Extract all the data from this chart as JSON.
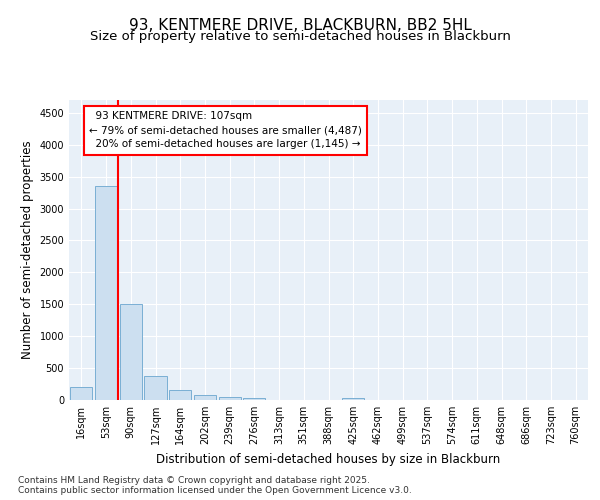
{
  "title_line1": "93, KENTMERE DRIVE, BLACKBURN, BB2 5HL",
  "title_line2": "Size of property relative to semi-detached houses in Blackburn",
  "xlabel": "Distribution of semi-detached houses by size in Blackburn",
  "ylabel": "Number of semi-detached properties",
  "categories": [
    "16sqm",
    "53sqm",
    "90sqm",
    "127sqm",
    "164sqm",
    "202sqm",
    "239sqm",
    "276sqm",
    "313sqm",
    "351sqm",
    "388sqm",
    "425sqm",
    "462sqm",
    "499sqm",
    "537sqm",
    "574sqm",
    "611sqm",
    "648sqm",
    "686sqm",
    "723sqm",
    "760sqm"
  ],
  "values": [
    200,
    3350,
    1500,
    370,
    150,
    80,
    50,
    30,
    0,
    0,
    0,
    30,
    0,
    0,
    0,
    0,
    0,
    0,
    0,
    0,
    0
  ],
  "bar_color": "#ccdff0",
  "bar_edge_color": "#7aafd4",
  "vline_x": 1.5,
  "vline_color": "red",
  "annotation_text": "  93 KENTMERE DRIVE: 107sqm  \n← 79% of semi-detached houses are smaller (4,487)\n  20% of semi-detached houses are larger (1,145) →",
  "annotation_box_color": "white",
  "annotation_box_edge": "red",
  "ylim": [
    0,
    4700
  ],
  "yticks": [
    0,
    500,
    1000,
    1500,
    2000,
    2500,
    3000,
    3500,
    4000,
    4500
  ],
  "bg_color": "#e8f0f8",
  "grid_color": "white",
  "footer_text": "Contains HM Land Registry data © Crown copyright and database right 2025.\nContains public sector information licensed under the Open Government Licence v3.0.",
  "title_fontsize": 11,
  "subtitle_fontsize": 9.5,
  "axis_label_fontsize": 8.5,
  "tick_fontsize": 7,
  "footer_fontsize": 6.5,
  "annot_fontsize": 7.5
}
